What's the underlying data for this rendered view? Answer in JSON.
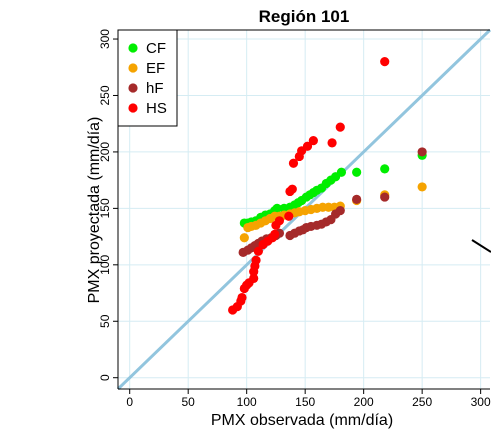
{
  "chart_data": {
    "type": "scatter",
    "title": "Región  101",
    "xlabel": "PMX observada (mm/día)",
    "ylabel": "PMX proyectada (mm/día)",
    "xlim": [
      -10,
      308
    ],
    "ylim": [
      -10,
      308
    ],
    "xticks": [
      0,
      50,
      100,
      150,
      200,
      250,
      300
    ],
    "yticks": [
      0,
      50,
      100,
      150,
      200,
      250,
      300
    ],
    "grid": true,
    "legend_position": "top-left",
    "reference_line": {
      "type": "identity",
      "color": "#92c5de"
    },
    "series": [
      {
        "name": "CF",
        "color": "#00ee00",
        "points": [
          [
            98,
            137
          ],
          [
            101,
            137
          ],
          [
            104,
            138
          ],
          [
            108,
            139
          ],
          [
            112,
            142
          ],
          [
            116,
            144
          ],
          [
            120,
            145
          ],
          [
            124,
            148
          ],
          [
            126,
            150
          ],
          [
            132,
            150
          ],
          [
            137,
            151
          ],
          [
            141,
            153
          ],
          [
            144,
            155
          ],
          [
            147,
            157
          ],
          [
            151,
            160
          ],
          [
            154,
            162
          ],
          [
            157,
            164
          ],
          [
            160,
            166
          ],
          [
            164,
            168
          ],
          [
            168,
            172
          ],
          [
            172,
            175
          ],
          [
            176,
            178
          ],
          [
            181,
            182
          ],
          [
            194,
            182
          ],
          [
            218,
            185
          ],
          [
            250,
            197
          ]
        ]
      },
      {
        "name": "EF",
        "color": "#f5a300",
        "points": [
          [
            98,
            124
          ],
          [
            101,
            133
          ],
          [
            104,
            134
          ],
          [
            108,
            135
          ],
          [
            112,
            137
          ],
          [
            116,
            139
          ],
          [
            120,
            141
          ],
          [
            124,
            143
          ],
          [
            128,
            143
          ],
          [
            132,
            144
          ],
          [
            137,
            145
          ],
          [
            141,
            146
          ],
          [
            145,
            147
          ],
          [
            150,
            148
          ],
          [
            155,
            149
          ],
          [
            160,
            150
          ],
          [
            165,
            151
          ],
          [
            170,
            151
          ],
          [
            175,
            151
          ],
          [
            180,
            152
          ],
          [
            194,
            157
          ],
          [
            218,
            162
          ],
          [
            250,
            169
          ]
        ]
      },
      {
        "name": "hF",
        "color": "#a52a2a",
        "points": [
          [
            97,
            111
          ],
          [
            101,
            113
          ],
          [
            104,
            115
          ],
          [
            107,
            117
          ],
          [
            110,
            119
          ],
          [
            113,
            121
          ],
          [
            117,
            123
          ],
          [
            121,
            124
          ],
          [
            125,
            126
          ],
          [
            128,
            128
          ],
          [
            137,
            126
          ],
          [
            141,
            128
          ],
          [
            145,
            130
          ],
          [
            148,
            131
          ],
          [
            151,
            133
          ],
          [
            155,
            134
          ],
          [
            160,
            135
          ],
          [
            164,
            136
          ],
          [
            168,
            138
          ],
          [
            172,
            140
          ],
          [
            176,
            145
          ],
          [
            180,
            148
          ],
          [
            194,
            158
          ],
          [
            218,
            160
          ],
          [
            250,
            200
          ]
        ]
      },
      {
        "name": "HS",
        "color": "#ff0000",
        "points": [
          [
            88,
            60
          ],
          [
            92,
            63
          ],
          [
            95,
            68
          ],
          [
            96,
            71
          ],
          [
            98,
            79
          ],
          [
            100,
            82
          ],
          [
            102,
            84
          ],
          [
            106,
            88
          ],
          [
            106,
            94
          ],
          [
            107,
            99
          ],
          [
            108,
            104
          ],
          [
            110,
            112
          ],
          [
            114,
            118
          ],
          [
            118,
            121
          ],
          [
            122,
            124
          ],
          [
            124,
            127
          ],
          [
            125,
            135
          ],
          [
            128,
            139
          ],
          [
            136,
            143
          ],
          [
            137,
            165
          ],
          [
            139,
            167
          ],
          [
            140,
            190
          ],
          [
            145,
            196
          ],
          [
            147,
            201
          ],
          [
            152,
            205
          ],
          [
            157,
            210
          ],
          [
            173,
            208
          ],
          [
            180,
            222
          ],
          [
            218,
            280
          ]
        ]
      }
    ]
  }
}
